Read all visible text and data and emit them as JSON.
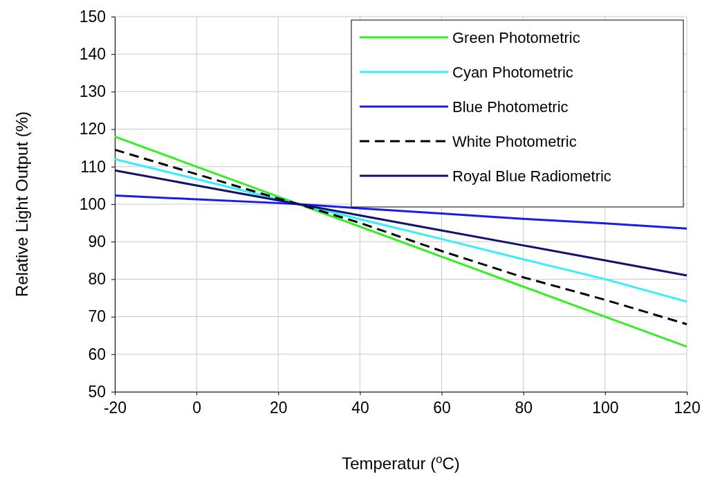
{
  "chart_data": {
    "type": "line",
    "xlabel": "Temperatur ($^{o}$C)",
    "ylabel": "Relative Light Output (%)",
    "x": [
      -20,
      0,
      20,
      25,
      40,
      60,
      80,
      100,
      120
    ],
    "xlim": [
      -20,
      120
    ],
    "xticks": [
      -20,
      0,
      20,
      40,
      60,
      80,
      100,
      120
    ],
    "ylim": [
      50,
      150
    ],
    "yticks": [
      50,
      60,
      70,
      80,
      90,
      100,
      110,
      120,
      130,
      140,
      150
    ],
    "grid": true,
    "legend": "top right",
    "marker": "none",
    "series": [
      {
        "name": "Green Photometric",
        "color": "#33ee22",
        "values": [
          118,
          110,
          102,
          100,
          94,
          86,
          78,
          70,
          62
        ]
      },
      {
        "name": "Cyan Photometric",
        "color": "#33eeff",
        "values": [
          112,
          106.7,
          101.3,
          100,
          96,
          90.7,
          85.3,
          80,
          74
        ]
      },
      {
        "name": "Blue Photometric",
        "color": "#1a1aee",
        "values": [
          102.3,
          101.3,
          100.3,
          100,
          98.9,
          97.5,
          96.1,
          94.9,
          93.5
        ]
      },
      {
        "name": "White Photometric",
        "color": "#000000",
        "line_style": "dashed",
        "values": [
          114.5,
          108,
          101.5,
          100,
          95,
          87.5,
          80.5,
          74.5,
          68
        ]
      },
      {
        "name": "Royal Blue Radiometric",
        "color": "#101070",
        "values": [
          109,
          105,
          101,
          100,
          97,
          93,
          89,
          85,
          81
        ]
      }
    ]
  }
}
